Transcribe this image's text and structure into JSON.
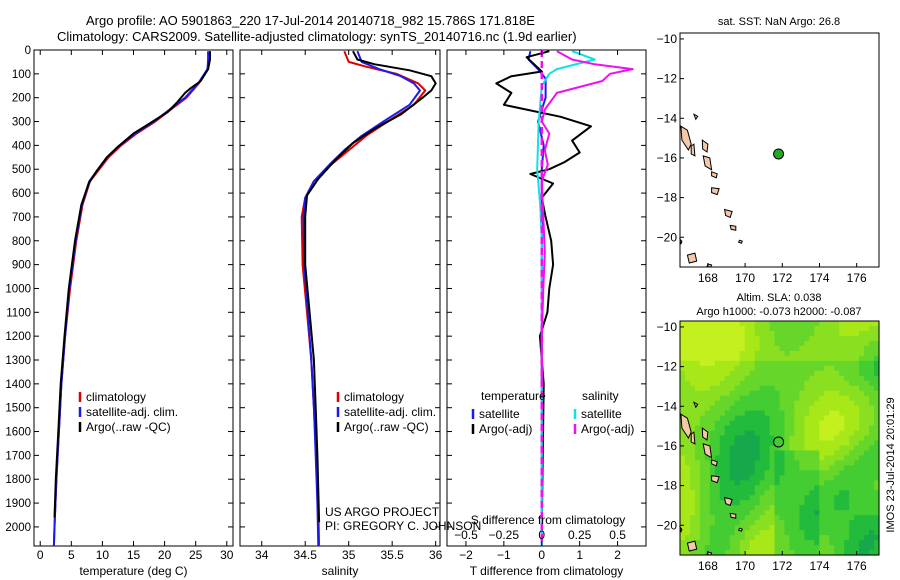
{
  "header": {
    "line1": "Argo profile: AO 5901863_220 17-Jul-2014 20140718_982 15.786S 171.818E",
    "line2": "Climatology: CARS2009. Satellite-adjusted climatology: synTS_20140716.nc (1.9d earlier)"
  },
  "colors": {
    "climatology": "#e00000",
    "satellite": "#1a1aee",
    "argo": "#000000",
    "sal_satellite": "#10e0e8",
    "sal_argo": "#ee10ee",
    "land": "#f5c8a8",
    "sst_dot": "#22aa22"
  },
  "chart_data": [
    {
      "id": "temperature",
      "type": "line",
      "xlabel": "temperature (deg C)",
      "ylabel": "",
      "xlim": [
        -1,
        31
      ],
      "ylim": [
        2080,
        0
      ],
      "xticks": [
        0,
        5,
        10,
        15,
        20,
        25,
        30
      ],
      "yticks": [
        0,
        100,
        200,
        300,
        400,
        500,
        600,
        700,
        800,
        900,
        1000,
        1100,
        1200,
        1300,
        1400,
        1500,
        1600,
        1700,
        1800,
        1900,
        2000
      ],
      "legend": [
        {
          "label": "climatology",
          "color": "#e00000"
        },
        {
          "label": "satellite-adj. clim.",
          "color": "#1a1aee"
        },
        {
          "label": "Argo(..raw -QC)",
          "color": "#000000"
        }
      ],
      "series": [
        {
          "name": "climatology",
          "color": "#e00000",
          "points": [
            [
              27.2,
              5
            ],
            [
              27.2,
              40
            ],
            [
              27.0,
              80
            ],
            [
              25.5,
              140
            ],
            [
              23.5,
              200
            ],
            [
              21.0,
              250
            ],
            [
              18.5,
              300
            ],
            [
              15.5,
              350
            ],
            [
              13.0,
              400
            ],
            [
              11.0,
              450
            ],
            [
              9.5,
              500
            ],
            [
              8.0,
              550
            ],
            [
              6.8,
              650
            ],
            [
              5.8,
              800
            ],
            [
              4.8,
              1000
            ],
            [
              4.0,
              1200
            ],
            [
              3.4,
              1400
            ],
            [
              3.0,
              1600
            ],
            [
              2.6,
              1800
            ],
            [
              2.3,
              2000
            ],
            [
              2.2,
              2080
            ]
          ]
        },
        {
          "name": "satellite-adj. clim.",
          "color": "#1a1aee",
          "points": [
            [
              27.0,
              5
            ],
            [
              27.0,
              40
            ],
            [
              26.9,
              80
            ],
            [
              25.4,
              140
            ],
            [
              23.3,
              200
            ],
            [
              20.8,
              250
            ],
            [
              18.3,
              300
            ],
            [
              15.3,
              350
            ],
            [
              12.8,
              400
            ],
            [
              10.8,
              450
            ],
            [
              9.3,
              500
            ],
            [
              7.9,
              550
            ],
            [
              6.7,
              650
            ],
            [
              5.7,
              800
            ],
            [
              4.7,
              1000
            ],
            [
              4.0,
              1200
            ],
            [
              3.4,
              1400
            ],
            [
              3.0,
              1600
            ],
            [
              2.6,
              1800
            ],
            [
              2.3,
              2000
            ],
            [
              2.2,
              2080
            ]
          ]
        },
        {
          "name": "Argo(..raw -QC)",
          "color": "#000000",
          "points": [
            [
              27.3,
              5
            ],
            [
              27.3,
              40
            ],
            [
              27.0,
              80
            ],
            [
              25.8,
              130
            ],
            [
              24.2,
              160
            ],
            [
              23.3,
              180
            ],
            [
              22.0,
              220
            ],
            [
              20.5,
              260
            ],
            [
              17.5,
              310
            ],
            [
              15.0,
              350
            ],
            [
              12.3,
              410
            ],
            [
              10.7,
              450
            ],
            [
              9.0,
              510
            ],
            [
              7.8,
              560
            ],
            [
              6.6,
              650
            ],
            [
              5.6,
              800
            ],
            [
              4.6,
              1000
            ],
            [
              3.9,
              1200
            ],
            [
              3.3,
              1400
            ],
            [
              2.9,
              1600
            ],
            [
              2.5,
              1800
            ],
            [
              2.3,
              1960
            ]
          ]
        }
      ]
    },
    {
      "id": "salinity",
      "type": "line",
      "xlabel": "salinity",
      "ylabel": "",
      "xlim": [
        33.75,
        36.05
      ],
      "ylim": [
        2080,
        0
      ],
      "xticks": [
        34,
        34.5,
        35,
        35.5,
        36
      ],
      "xticklabels": [
        "34",
        "34.5",
        "35",
        "35.5",
        "36"
      ],
      "legend": [
        {
          "label": "climatology",
          "color": "#e00000"
        },
        {
          "label": "satellite-adj. clim.",
          "color": "#1a1aee"
        },
        {
          "label": "Argo(..raw -QC)",
          "color": "#000000"
        }
      ],
      "series": [
        {
          "name": "climatology",
          "color": "#e00000",
          "points": [
            [
              34.95,
              5
            ],
            [
              35.0,
              50
            ],
            [
              35.2,
              70
            ],
            [
              35.55,
              100
            ],
            [
              35.8,
              140
            ],
            [
              35.88,
              170
            ],
            [
              35.75,
              230
            ],
            [
              35.45,
              300
            ],
            [
              35.2,
              360
            ],
            [
              35.0,
              420
            ],
            [
              34.8,
              480
            ],
            [
              34.6,
              550
            ],
            [
              34.5,
              620
            ],
            [
              34.46,
              700
            ],
            [
              34.47,
              900
            ],
            [
              34.52,
              1100
            ],
            [
              34.57,
              1300
            ],
            [
              34.6,
              1500
            ],
            [
              34.63,
              1700
            ],
            [
              34.65,
              1900
            ],
            [
              34.66,
              2080
            ]
          ]
        },
        {
          "name": "satellite-adj. clim.",
          "color": "#1a1aee",
          "points": [
            [
              35.1,
              5
            ],
            [
              35.15,
              50
            ],
            [
              35.35,
              80
            ],
            [
              35.6,
              110
            ],
            [
              35.75,
              140
            ],
            [
              35.82,
              170
            ],
            [
              35.7,
              230
            ],
            [
              35.4,
              300
            ],
            [
              35.15,
              360
            ],
            [
              34.95,
              420
            ],
            [
              34.78,
              480
            ],
            [
              34.6,
              550
            ],
            [
              34.5,
              620
            ],
            [
              34.48,
              700
            ],
            [
              34.49,
              900
            ],
            [
              34.53,
              1100
            ],
            [
              34.57,
              1300
            ],
            [
              34.6,
              1500
            ],
            [
              34.62,
              1700
            ],
            [
              34.64,
              1900
            ],
            [
              34.65,
              2080
            ]
          ]
        },
        {
          "name": "Argo(..raw -QC)",
          "color": "#000000",
          "points": [
            [
              35.05,
              5
            ],
            [
              35.1,
              40
            ],
            [
              35.3,
              60
            ],
            [
              35.7,
              85
            ],
            [
              35.95,
              110
            ],
            [
              36.0,
              140
            ],
            [
              35.95,
              170
            ],
            [
              35.85,
              200
            ],
            [
              35.6,
              270
            ],
            [
              35.3,
              330
            ],
            [
              35.05,
              390
            ],
            [
              34.85,
              460
            ],
            [
              34.65,
              540
            ],
            [
              34.52,
              610
            ],
            [
              34.5,
              700
            ],
            [
              34.5,
              900
            ],
            [
              34.55,
              1100
            ],
            [
              34.6,
              1300
            ],
            [
              34.62,
              1500
            ],
            [
              34.64,
              1700
            ],
            [
              34.66,
              1980
            ]
          ]
        }
      ]
    },
    {
      "id": "difference",
      "type": "line",
      "xlabel": "T difference from climatology",
      "xlabel_top": "S difference from climatology",
      "xlim": [
        -2.5,
        2.75
      ],
      "ylim": [
        2080,
        0
      ],
      "xticks": [
        -2,
        -1,
        0,
        1,
        2
      ],
      "xticklabels": [
        "−2",
        "−1",
        "0",
        "1",
        "2"
      ],
      "sticks": [
        -0.5,
        -0.25,
        0,
        0.25,
        0.5
      ],
      "sticklabels": [
        "−0.5",
        "−0.25",
        "0",
        "0.25",
        "0.5"
      ],
      "s_scale": 4,
      "legend_t_title": "temperature",
      "legend_s_title": "salinity",
      "legend": [
        {
          "label": "satellite",
          "color": "#1a1aee",
          "group": "t"
        },
        {
          "label": "Argo(-adj)",
          "color": "#000000",
          "group": "t"
        },
        {
          "label": "satellite",
          "color": "#10e0e8",
          "group": "s"
        },
        {
          "label": "Argo(-adj)",
          "color": "#ee10ee",
          "group": "s"
        }
      ],
      "series": [
        {
          "name": "T satellite",
          "color": "#1a1aee",
          "points": [
            [
              -0.3,
              5
            ],
            [
              -0.35,
              40
            ],
            [
              -0.1,
              80
            ],
            [
              0.1,
              120
            ],
            [
              0.1,
              200
            ],
            [
              -0.1,
              300
            ],
            [
              0.05,
              400
            ],
            [
              0.0,
              500
            ],
            [
              0.0,
              600
            ],
            [
              0.0,
              700
            ],
            [
              0.0,
              900
            ],
            [
              0.0,
              1200
            ],
            [
              0.0,
              1600
            ],
            [
              0.0,
              2080
            ]
          ]
        },
        {
          "name": "T Argo(-adj)",
          "color": "#000000",
          "points": [
            [
              0.2,
              5
            ],
            [
              -0.4,
              30
            ],
            [
              -0.2,
              60
            ],
            [
              0.0,
              90
            ],
            [
              -0.8,
              110
            ],
            [
              -1.2,
              140
            ],
            [
              -0.8,
              180
            ],
            [
              -1.0,
              230
            ],
            [
              0.5,
              280
            ],
            [
              1.3,
              320
            ],
            [
              0.8,
              380
            ],
            [
              1.0,
              430
            ],
            [
              0.6,
              470
            ],
            [
              0.2,
              500
            ],
            [
              -0.3,
              520
            ],
            [
              0.3,
              560
            ],
            [
              0.0,
              620
            ],
            [
              0.1,
              700
            ],
            [
              0.25,
              800
            ],
            [
              0.3,
              900
            ],
            [
              0.2,
              1000
            ],
            [
              0.15,
              1100
            ],
            [
              -0.05,
              1200
            ],
            [
              0.05,
              1400
            ],
            [
              0.0,
              2000
            ]
          ]
        },
        {
          "name": "S satellite",
          "color": "#10e0e8",
          "points": [
            [
              0.2,
              5
            ],
            [
              0.35,
              40
            ],
            [
              0.1,
              80
            ],
            [
              0.05,
              100
            ],
            [
              0.0,
              150
            ],
            [
              -0.02,
              300
            ],
            [
              -0.03,
              500
            ],
            [
              -0.01,
              650
            ],
            [
              0.0,
              800
            ],
            [
              0.0,
              1200
            ],
            [
              0.0,
              2080
            ]
          ]
        },
        {
          "name": "S Argo(-adj)",
          "color": "#ee10ee",
          "points": [
            [
              0.1,
              5
            ],
            [
              0.2,
              40
            ],
            [
              0.35,
              60
            ],
            [
              0.6,
              80
            ],
            [
              0.45,
              100
            ],
            [
              0.4,
              130
            ],
            [
              0.1,
              180
            ],
            [
              0.02,
              250
            ],
            [
              0.0,
              300
            ],
            [
              0.05,
              350
            ],
            [
              0.02,
              420
            ],
            [
              0.04,
              480
            ],
            [
              0.0,
              550
            ],
            [
              0.01,
              700
            ],
            [
              0.02,
              850
            ],
            [
              0.01,
              1000
            ],
            [
              0.0,
              1200
            ],
            [
              0.0,
              1400
            ]
          ]
        },
        {
          "name": "S climatology zero",
          "color": "#ee10ee",
          "dashed": true,
          "points": [
            [
              0.0,
              0
            ],
            [
              0.0,
              2080
            ]
          ]
        }
      ]
    },
    {
      "id": "sst_map",
      "type": "scatter",
      "title": "sat. SST: NaN Argo: 26.8",
      "xlim": [
        166.5,
        177.2
      ],
      "ylim": [
        -21.5,
        -9.7
      ],
      "xticks": [
        168,
        170,
        172,
        174,
        176
      ],
      "yticks": [
        -10,
        -12,
        -14,
        -16,
        -18,
        -20
      ],
      "points": [
        {
          "lon": 171.8,
          "lat": -15.8
        }
      ]
    },
    {
      "id": "sla_map",
      "type": "heatmap",
      "title1": "Altim. SLA: 0.038",
      "title2": "Argo h1000: -0.073 h2000: -0.087",
      "xlim": [
        166.5,
        177.2
      ],
      "ylim": [
        -21.5,
        -9.7
      ],
      "xticks": [
        168,
        170,
        172,
        174,
        176
      ],
      "yticks": [
        -10,
        -12,
        -14,
        -16,
        -18,
        -20
      ],
      "points": [
        {
          "lon": 171.8,
          "lat": -15.8
        }
      ]
    }
  ],
  "annotations": {
    "project1": "US ARGO PROJECT",
    "project2": "PI: GREGORY C. JOHNSON",
    "side_label": "IMOS 23-Jul-2014 20:01:29"
  },
  "yaxis": {
    "ticklabels": [
      "0",
      "100",
      "200",
      "300",
      "400",
      "500",
      "600",
      "700",
      "800",
      "900",
      "1000",
      "1100",
      "1200",
      "1300",
      "1400",
      "1500",
      "1600",
      "1700",
      "1800",
      "1900",
      "2000"
    ]
  }
}
